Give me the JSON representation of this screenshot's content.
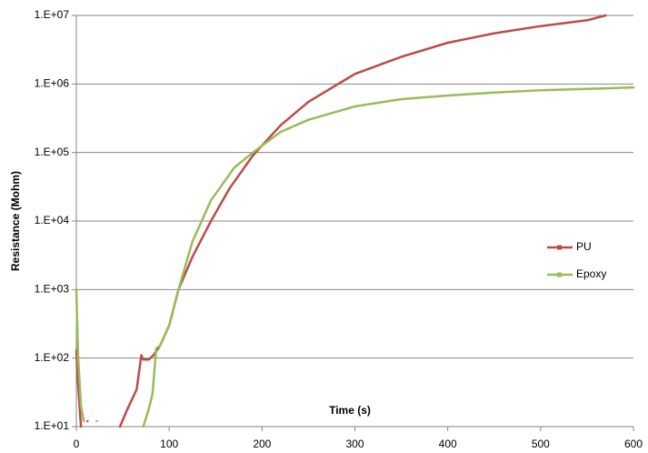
{
  "chart_data": {
    "type": "line",
    "xlabel": "Time (s)",
    "ylabel": "Resistance (Mohm)",
    "xlim": [
      0,
      600
    ],
    "xticks": [
      0,
      100,
      200,
      300,
      400,
      500,
      600
    ],
    "ylim": [
      10,
      10000000
    ],
    "log_y": true,
    "grid": true,
    "legend": "right",
    "yticks": [
      {
        "value": 10,
        "label": "1.E+01"
      },
      {
        "value": 100,
        "label": "1.E+02"
      },
      {
        "value": 1000,
        "label": "1.E+03"
      },
      {
        "value": 10000,
        "label": "1.E+04"
      },
      {
        "value": 100000,
        "label": "1.E+05"
      },
      {
        "value": 1000000,
        "label": "1.E+06"
      },
      {
        "value": 10000000,
        "label": "1.E+07"
      }
    ],
    "series": [
      {
        "name": "PU",
        "color": "#be4b48",
        "x": [
          0,
          2,
          5,
          8,
          12,
          20,
          47,
          55,
          65,
          70,
          72,
          78,
          83,
          90,
          100,
          110,
          125,
          145,
          165,
          190,
          220,
          250,
          300,
          350,
          400,
          450,
          500,
          550,
          570
        ],
        "values": [
          130,
          40,
          10,
          null,
          12,
          null,
          10,
          18,
          35,
          110,
          95,
          95,
          110,
          150,
          300,
          1000,
          3000,
          10000,
          30000,
          90000,
          250000,
          550000,
          1400000,
          2500000,
          4000000,
          5500000,
          7000000,
          8500000,
          10000000
        ]
      },
      {
        "name": "Epoxy",
        "color": "#9bbb59",
        "x": [
          0,
          2,
          5,
          8,
          15,
          22,
          30,
          72,
          78,
          82,
          86,
          90,
          100,
          110,
          125,
          145,
          170,
          190,
          220,
          250,
          300,
          350,
          400,
          450,
          500,
          550,
          600
        ],
        "values": [
          1000,
          100,
          20,
          12,
          null,
          12,
          null,
          10,
          18,
          30,
          140,
          150,
          300,
          1000,
          5000,
          20000,
          60000,
          100000,
          200000,
          300000,
          470000,
          600000,
          680000,
          750000,
          810000,
          850000,
          890000
        ]
      }
    ]
  }
}
